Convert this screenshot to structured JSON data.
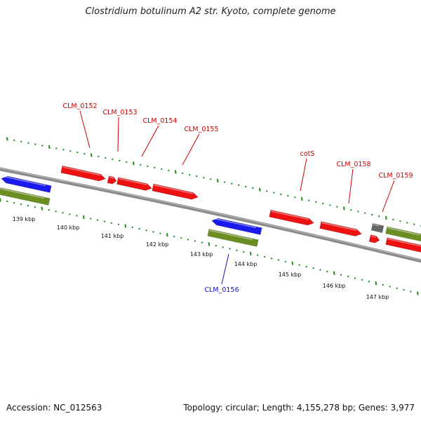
{
  "title": "Clostridium botulinum A2 str. Kyoto, complete genome",
  "footer": {
    "accession": "Accession: NC_012563",
    "summary": "Topology: circular; Length: 4,155,278 bp; Genes: 3,977"
  },
  "colors": {
    "forward_cds": "#ee1111",
    "reverse_cds": "#1a1aee",
    "gene": "#6b8e23",
    "other": "#666666",
    "backbone": "#8a8a8a",
    "ticks": "#228b22",
    "forward_label": "#cc0000",
    "reverse_label": "#1010cc"
  },
  "kbp_labels": [
    "139 kbp",
    "140 kbp",
    "141 kbp",
    "142 kbp",
    "143 kbp",
    "144 kbp",
    "145 kbp",
    "146 kbp",
    "147 kbp"
  ],
  "gene_labels": [
    {
      "name": "CLM_0152",
      "strand": "forward"
    },
    {
      "name": "CLM_0153",
      "strand": "forward"
    },
    {
      "name": "CLM_0154",
      "strand": "forward"
    },
    {
      "name": "CLM_0155",
      "strand": "forward"
    },
    {
      "name": "cotS",
      "strand": "forward"
    },
    {
      "name": "CLM_0158",
      "strand": "forward"
    },
    {
      "name": "CLM_0159",
      "strand": "forward"
    },
    {
      "name": "CLM_0156",
      "strand": "reverse"
    }
  ]
}
